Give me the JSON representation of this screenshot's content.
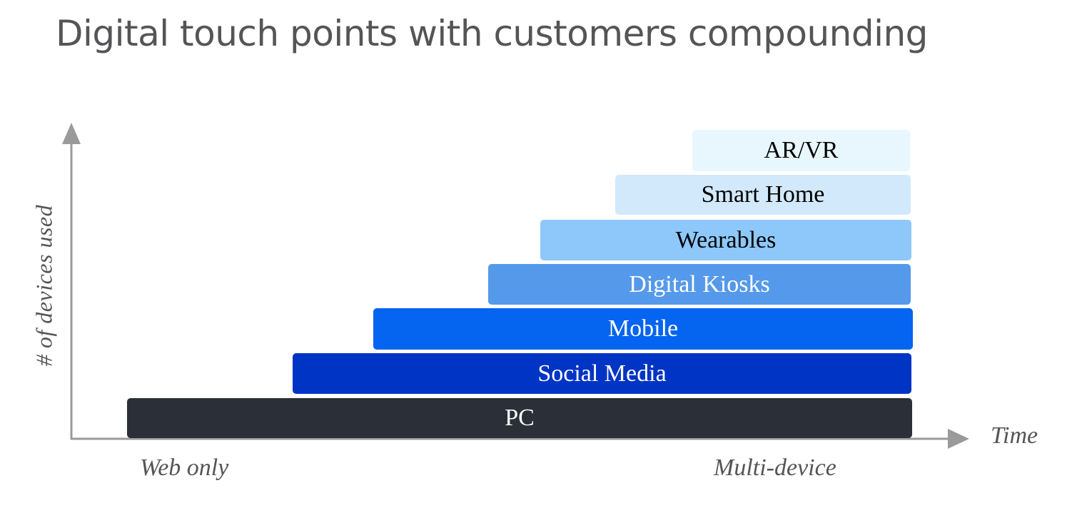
{
  "title": "Digital touch points with customers compounding",
  "y_axis_label": "# of devices used",
  "x_axis": {
    "title": "Time",
    "start_label": "Web only",
    "end_label": "Multi-device"
  },
  "layers": [
    {
      "label": "AR/VR",
      "color": "#e8f6fd"
    },
    {
      "label": "Smart Home",
      "color": "#d2e9fb"
    },
    {
      "label": "Wearables",
      "color": "#8ec8fb"
    },
    {
      "label": "Digital Kiosks",
      "color": "#5599ea"
    },
    {
      "label": "Mobile",
      "color": "#0564f0"
    },
    {
      "label": "Social Media",
      "color": "#0034c4"
    },
    {
      "label": "PC",
      "color": "#2b2f38"
    }
  ],
  "colors": {
    "title_text": "#555558",
    "axis": "#9a9a9a"
  }
}
